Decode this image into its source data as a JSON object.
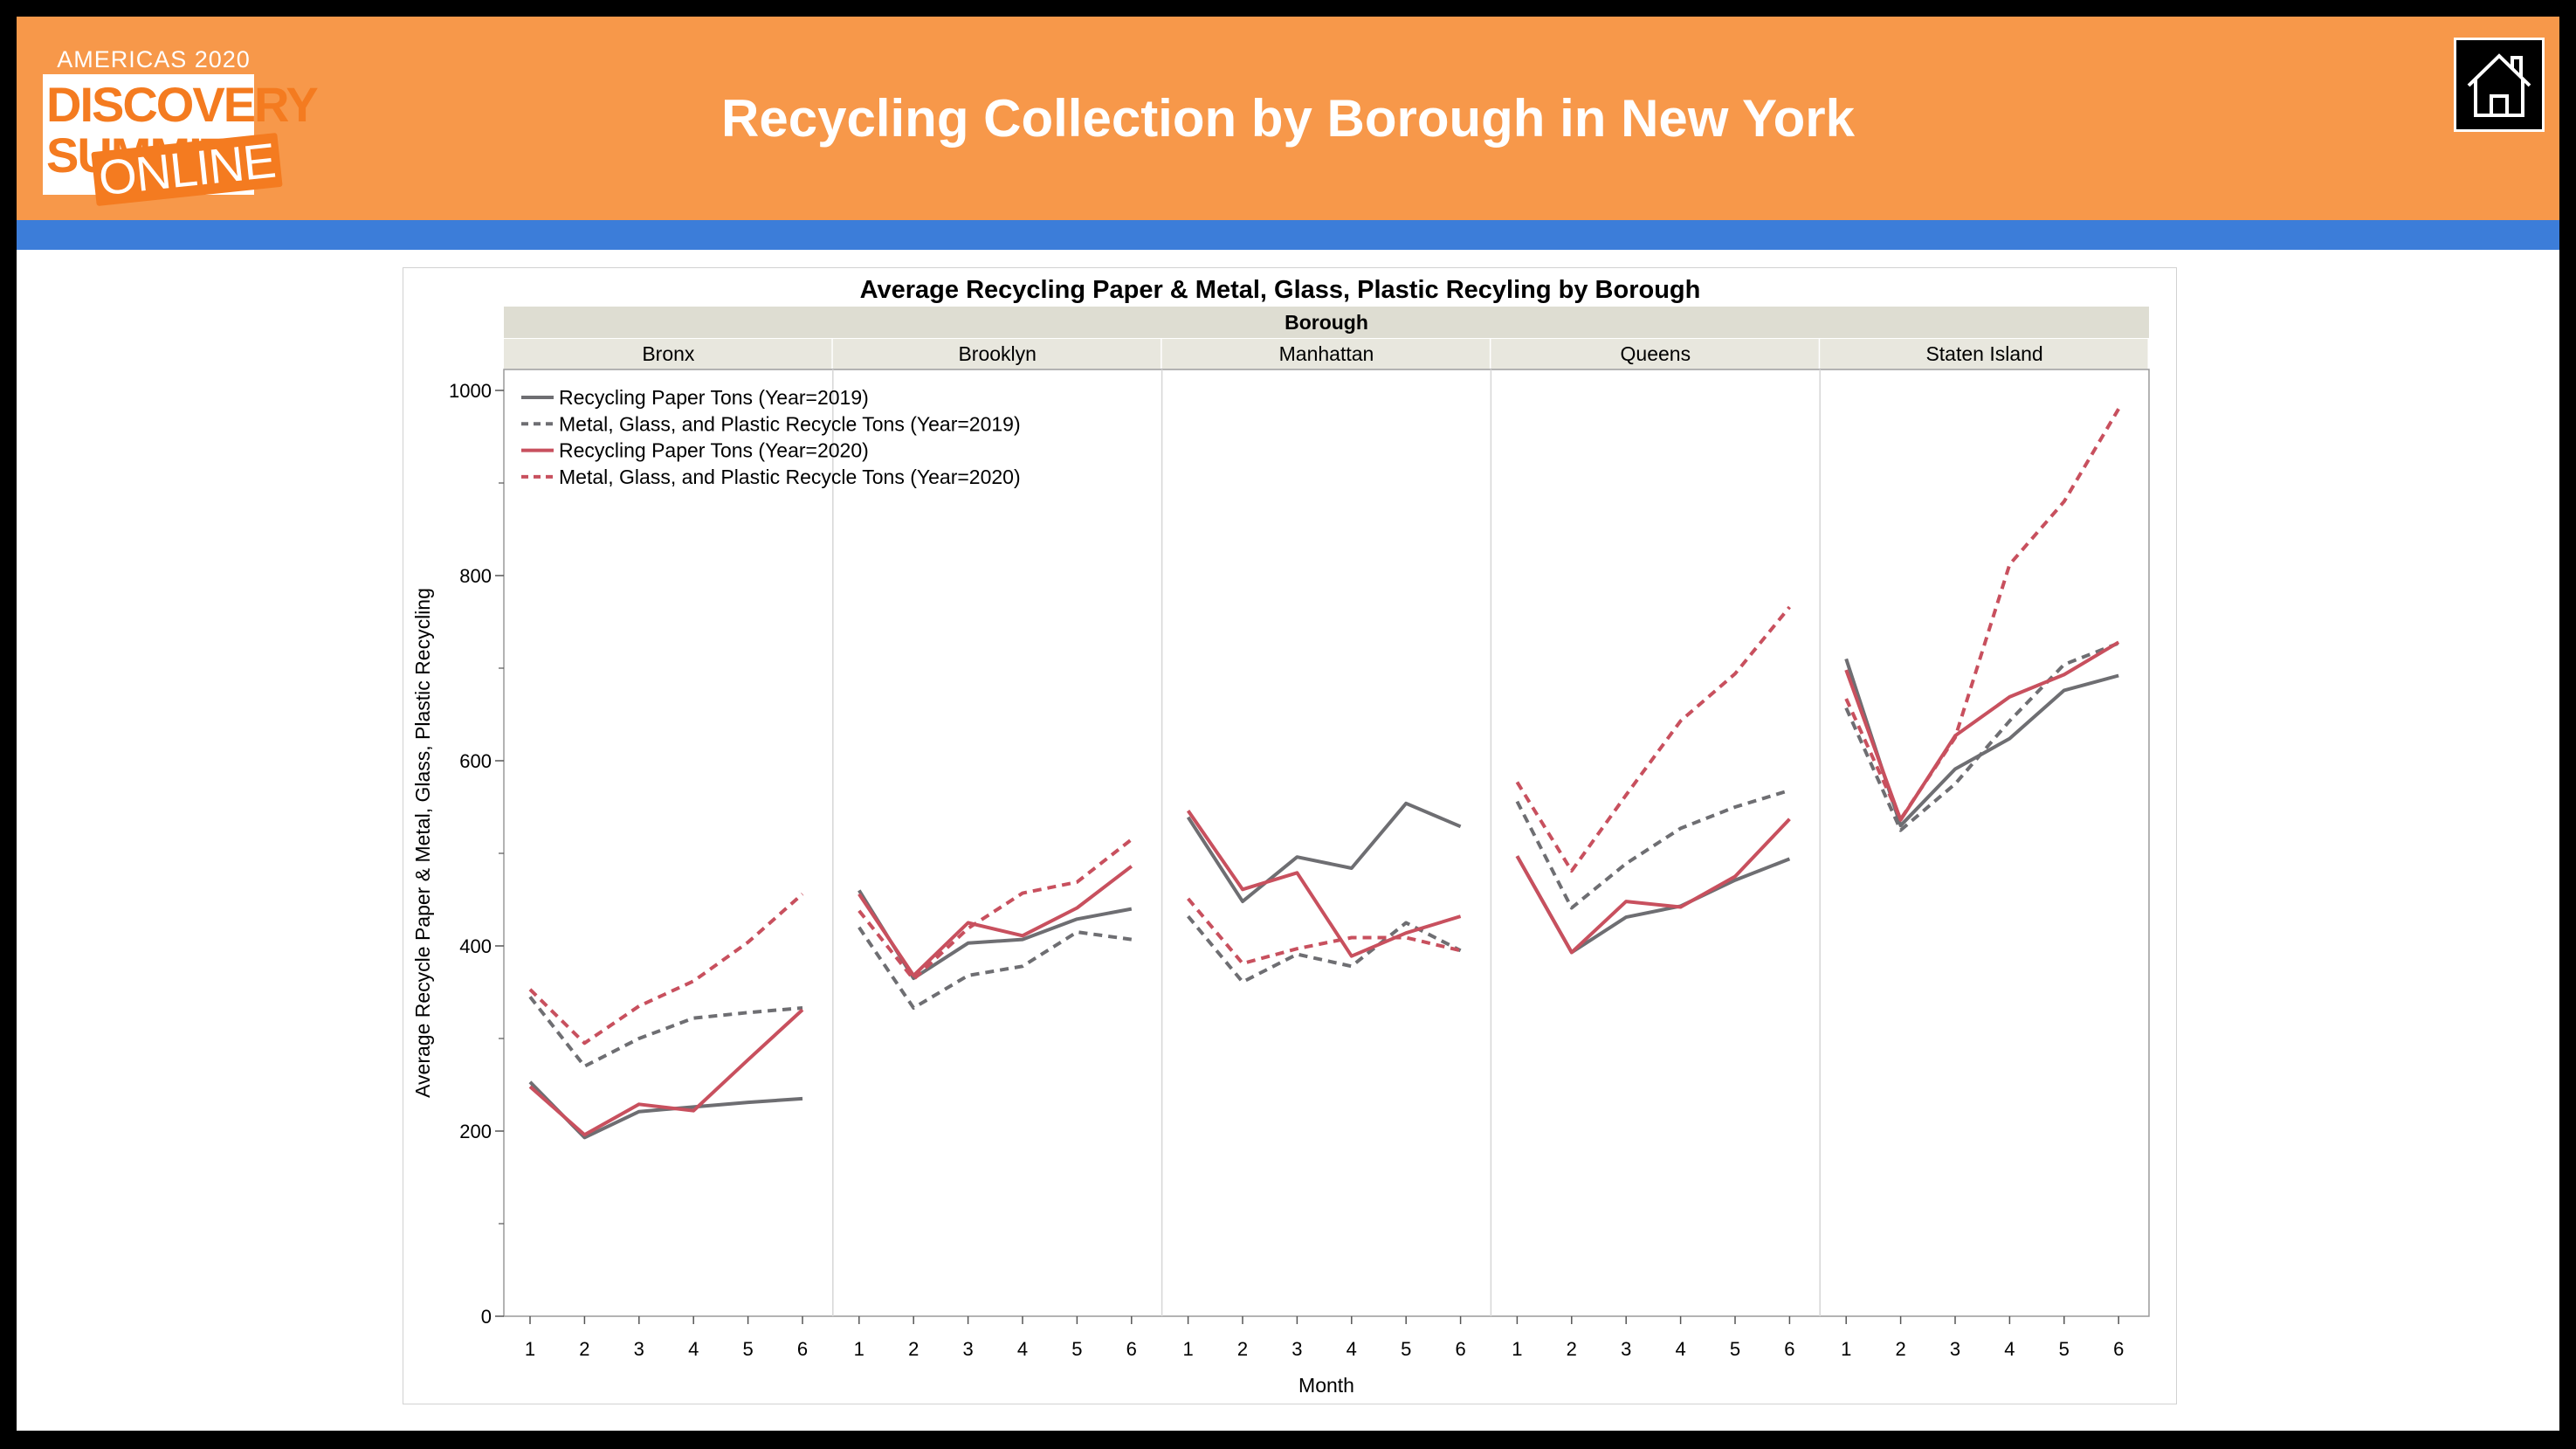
{
  "header": {
    "title": "Recycling Collection by Borough in New York",
    "logo": {
      "top_line": "AMERICAS 2020",
      "line1": "DISCOVERY",
      "line2": "SUMMIT",
      "line3": "ONLINE"
    },
    "home_icon": "home-icon",
    "colors": {
      "header_bg": "#F7984A",
      "band": "#3C7DD9",
      "logo_orange": "#F47B20"
    }
  },
  "chart_data": {
    "type": "line",
    "title": "Average Recycling Paper & Metal, Glass, Plastic Recyling by Borough",
    "group_label": "Borough",
    "xlabel": "Month",
    "ylabel": "Average Recycle Paper & Metal, Glass, Plastic Recycling",
    "ylim": [
      0,
      1000
    ],
    "yticks": [
      0,
      200,
      400,
      600,
      800,
      1000
    ],
    "x": [
      1,
      2,
      3,
      4,
      5,
      6
    ],
    "grid": false,
    "legend_position": "top-left",
    "legend": [
      "Recycling Paper Tons (Year=2019)",
      "Metal, Glass, and Plastic Recycle Tons (Year=2019)",
      "Recycling Paper Tons (Year=2020)",
      "Metal, Glass, and Plastic Recycle Tons (Year=2020)"
    ],
    "series_styles": [
      {
        "color": "#6E6E72",
        "dashed": false
      },
      {
        "color": "#6E6E72",
        "dashed": true
      },
      {
        "color": "#C8505E",
        "dashed": false
      },
      {
        "color": "#C8505E",
        "dashed": true
      }
    ],
    "panels": [
      {
        "name": "Bronx",
        "series": [
          [
            253,
            193,
            221,
            226,
            231,
            235
          ],
          [
            345,
            270,
            300,
            322,
            328,
            333
          ],
          [
            248,
            196,
            229,
            222,
            277,
            331
          ],
          [
            353,
            295,
            335,
            362,
            404,
            456
          ]
        ]
      },
      {
        "name": "Brooklyn",
        "series": [
          [
            460,
            365,
            403,
            407,
            429,
            440
          ],
          [
            420,
            333,
            368,
            378,
            415,
            407
          ],
          [
            456,
            368,
            425,
            411,
            441,
            486
          ],
          [
            438,
            364,
            419,
            457,
            469,
            515
          ]
        ]
      },
      {
        "name": "Manhattan",
        "series": [
          [
            539,
            448,
            496,
            484,
            554,
            529
          ],
          [
            432,
            361,
            391,
            378,
            425,
            395
          ],
          [
            546,
            461,
            479,
            389,
            414,
            432
          ],
          [
            451,
            381,
            397,
            409,
            409,
            395
          ]
        ]
      },
      {
        "name": "Queens",
        "series": [
          [
            497,
            393,
            431,
            443,
            471,
            494
          ],
          [
            556,
            441,
            489,
            527,
            550,
            568
          ],
          [
            497,
            393,
            448,
            442,
            475,
            537
          ],
          [
            577,
            481,
            563,
            643,
            694,
            766
          ]
        ]
      },
      {
        "name": "Staten Island",
        "series": [
          [
            710,
            530,
            591,
            624,
            676,
            692
          ],
          [
            657,
            525,
            575,
            643,
            704,
            727
          ],
          [
            698,
            536,
            627,
            669,
            693,
            728
          ],
          [
            667,
            537,
            625,
            812,
            880,
            980
          ]
        ]
      }
    ]
  }
}
